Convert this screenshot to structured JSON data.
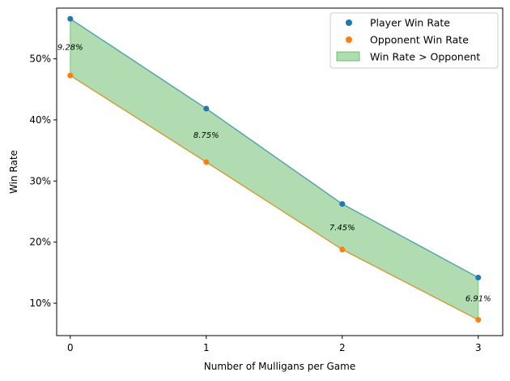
{
  "chart_data": {
    "type": "line",
    "title": "",
    "xlabel": "Number of Mulligans per Game",
    "ylabel": "Win Rate",
    "x": [
      0,
      1,
      2,
      3
    ],
    "x_tick_labels": [
      "0",
      "1",
      "2",
      "3"
    ],
    "xlim": [
      -0.1,
      3.18
    ],
    "ylim": [
      0.047,
      0.583
    ],
    "y_ticks": [
      0.1,
      0.2,
      0.3,
      0.4,
      0.5
    ],
    "y_tick_labels": [
      "10%",
      "20%",
      "30%",
      "40%",
      "50%"
    ],
    "grid": false,
    "legend_position": "top-right",
    "series": [
      {
        "name": "Player Win Rate",
        "values": [
          0.5655,
          0.4185,
          0.2625,
          0.142
        ],
        "marker_color": "#1f77b4",
        "line_color": "#5aa6ae"
      },
      {
        "name": "Opponent Win Rate",
        "values": [
          0.4727,
          0.331,
          0.188,
          0.0729
        ],
        "marker_color": "#ff7f0e",
        "line_color": "#d3a040"
      }
    ],
    "fill": {
      "name": "Win Rate > Opponent",
      "color": "#2ca02c",
      "opacity": 0.37
    },
    "annotations": [
      {
        "x": 0,
        "y": 0.5146,
        "text": "9.28%"
      },
      {
        "x": 1,
        "y": 0.3706,
        "text": "8.75%"
      },
      {
        "x": 2,
        "y": 0.2197,
        "text": "7.45%"
      },
      {
        "x": 3,
        "y": 0.1032,
        "text": "6.91%"
      }
    ]
  }
}
